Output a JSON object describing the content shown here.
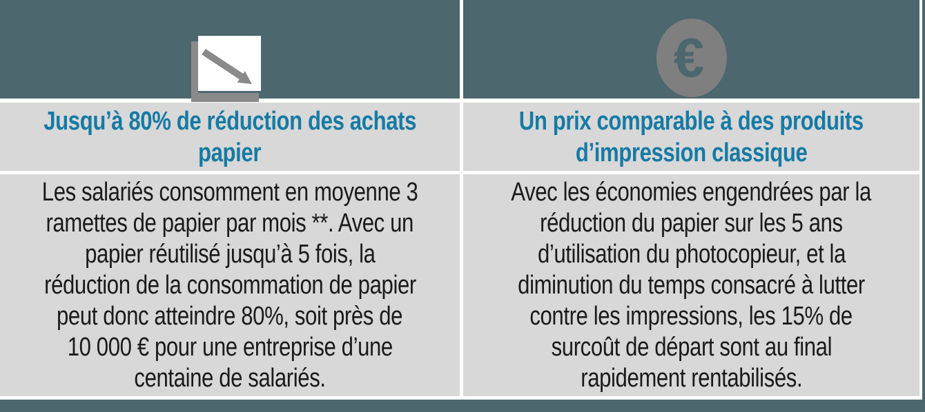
{
  "colors": {
    "header_teal": "#4c676e",
    "panel_gray": "#d8d8d8",
    "heading_blue": "#167aa4",
    "body_text": "#1a1a1a",
    "icon_gray": "#8a8a8a",
    "coin_gray": "#7f7f7f",
    "divider_white": "#ffffff"
  },
  "columns": [
    {
      "icon": "declining-chart-icon",
      "heading_lines": [
        "Jusqu’à 80% de réduction des achats",
        "papier"
      ],
      "body_lines": [
        "Les salariés consomment en moyenne 3",
        "ramettes de papier par mois **. Avec un",
        "papier réutilisé jusqu’à 5 fois, la",
        "réduction de la consommation de papier",
        "peut donc atteindre 80%, soit près de",
        "10 000 € pour une entreprise d’une",
        "centaine de salariés."
      ]
    },
    {
      "icon": "euro-coin-icon",
      "icon_glyph": "€",
      "heading_lines": [
        "Un prix comparable à des produits",
        "d’impression classique"
      ],
      "body_lines": [
        "Avec les économies engendrées par la",
        "réduction du papier sur les 5 ans",
        "d’utilisation du photocopieur, et la",
        "diminution du temps consacré à lutter",
        "contre les impressions, les 15% de",
        "surcoût de départ sont au final",
        "rapidement rentabilisés."
      ]
    }
  ]
}
